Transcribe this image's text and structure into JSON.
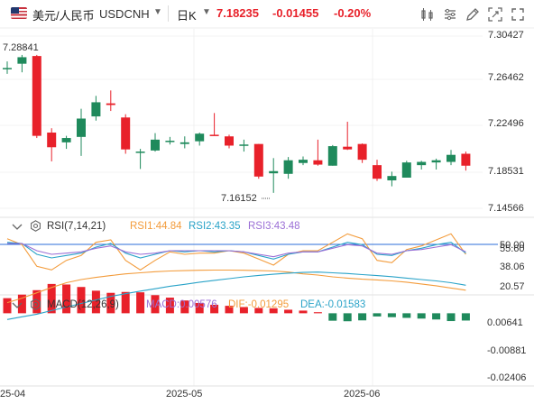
{
  "header": {
    "pair_name": "美元/人民币",
    "symbol": "USDCNH",
    "interval": "日K",
    "price": "7.18235",
    "change": "-0.01455",
    "change_pct": "-0.20%"
  },
  "colors": {
    "up": "#1f8a5c",
    "down": "#e8212a",
    "accent": "#2b6cd8"
  },
  "toolbar_icons": [
    "candle-chart-icon",
    "indicator-settings-icon",
    "drawing-tools-icon",
    "screenshot-icon",
    "fullscreen-icon"
  ],
  "rsi": {
    "title": "RSI(7,14,21)",
    "rsi1": "RSI1:44.84",
    "rsi2": "RSI2:43.35",
    "rsi3": "RSI3:43.48",
    "axis_labels": [
      "50.00",
      "55.60",
      "38.06",
      "20.57"
    ],
    "colors": {
      "rsi1": "#f39c3c",
      "rsi2": "#2aa3c8",
      "rsi3": "#9b6fd6"
    }
  },
  "macd": {
    "title": "MACD(12,26,9)",
    "macd": "MACD:0.00576",
    "dif": "DIF:-0.01295",
    "dea": "DEA:-0.01583",
    "axis_labels": [
      "0.00641",
      "-0.00881",
      "-0.02406"
    ],
    "colors": {
      "dif": "#f39c3c",
      "dea": "#2aa3c8"
    }
  },
  "price_axis": [
    "7.30427",
    "7.26462",
    "7.22496",
    "7.18531",
    "7.14566"
  ],
  "date_axis": [
    "25-04",
    "2025-05",
    "2025-06"
  ],
  "chart_data": {
    "type": "candlestick",
    "ylim": [
      7.14566,
      7.30427
    ],
    "high_label": "7.28841",
    "low_label": "7.16152",
    "candles": [
      {
        "o": 7.2749,
        "h": 7.2809,
        "l": 7.2695,
        "c": 7.2749
      },
      {
        "o": 7.2788,
        "h": 7.2869,
        "l": 7.2709,
        "c": 7.2848
      },
      {
        "o": 7.2859,
        "h": 7.2869,
        "l": 7.2104,
        "c": 7.2124
      },
      {
        "o": 7.2154,
        "h": 7.2194,
        "l": 7.1889,
        "c": 7.2019
      },
      {
        "o": 7.2064,
        "h": 7.2124,
        "l": 7.2004,
        "c": 7.2104
      },
      {
        "o": 7.2114,
        "h": 7.2373,
        "l": 7.1939,
        "c": 7.2283
      },
      {
        "o": 7.2303,
        "h": 7.2492,
        "l": 7.2264,
        "c": 7.2433
      },
      {
        "o": 7.2423,
        "h": 7.2542,
        "l": 7.2353,
        "c": 7.2408
      },
      {
        "o": 7.2293,
        "h": 7.2323,
        "l": 7.1959,
        "c": 7.1999
      },
      {
        "o": 7.1979,
        "h": 7.2004,
        "l": 7.1819,
        "c": 7.1979
      },
      {
        "o": 7.1989,
        "h": 7.2149,
        "l": 7.1979,
        "c": 7.2089
      },
      {
        "o": 7.2069,
        "h": 7.2114,
        "l": 7.2044,
        "c": 7.2079
      },
      {
        "o": 7.2049,
        "h": 7.2119,
        "l": 7.2009,
        "c": 7.2064
      },
      {
        "o": 7.2074,
        "h": 7.2154,
        "l": 7.2034,
        "c": 7.2144
      },
      {
        "o": 7.2134,
        "h": 7.2334,
        "l": 7.2129,
        "c": 7.2129
      },
      {
        "o": 7.2119,
        "h": 7.2134,
        "l": 7.2009,
        "c": 7.2034
      },
      {
        "o": 7.2039,
        "h": 7.2089,
        "l": 7.1979,
        "c": 7.2044
      },
      {
        "o": 7.2049,
        "h": 7.2049,
        "l": 7.1729,
        "c": 7.1749
      },
      {
        "o": 7.1779,
        "h": 7.1919,
        "l": 7.1599,
        "c": 7.1799
      },
      {
        "o": 7.1774,
        "h": 7.1929,
        "l": 7.1729,
        "c": 7.1899
      },
      {
        "o": 7.1874,
        "h": 7.1934,
        "l": 7.1854,
        "c": 7.1904
      },
      {
        "o": 7.1899,
        "h": 7.2089,
        "l": 7.1849,
        "c": 7.1859
      },
      {
        "o": 7.1849,
        "h": 7.2039,
        "l": 7.1849,
        "c": 7.2029
      },
      {
        "o": 7.2024,
        "h": 7.2254,
        "l": 7.1994,
        "c": 7.1999
      },
      {
        "o": 7.2049,
        "h": 7.2054,
        "l": 7.1874,
        "c": 7.1904
      },
      {
        "o": 7.1854,
        "h": 7.1904,
        "l": 7.1709,
        "c": 7.1729
      },
      {
        "o": 7.1714,
        "h": 7.1794,
        "l": 7.1659,
        "c": 7.1754
      },
      {
        "o": 7.1739,
        "h": 7.1894,
        "l": 7.1739,
        "c": 7.1879
      },
      {
        "o": 7.1854,
        "h": 7.1894,
        "l": 7.1814,
        "c": 7.1884
      },
      {
        "o": 7.1879,
        "h": 7.1914,
        "l": 7.1814,
        "c": 7.1899
      },
      {
        "o": 7.1884,
        "h": 7.1994,
        "l": 7.1854,
        "c": 7.1949
      },
      {
        "o": 7.1959,
        "h": 7.1979,
        "l": 7.1804,
        "c": 7.1849
      }
    ]
  }
}
